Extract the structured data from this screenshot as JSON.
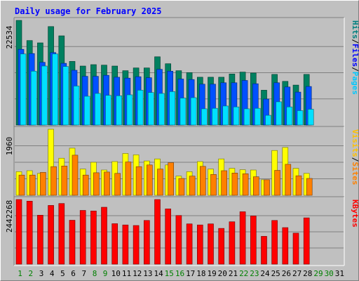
{
  "chart_data": {
    "type": "bar",
    "title": "Daily usage for February 2025",
    "x": [
      "1",
      "2",
      "3",
      "4",
      "5",
      "6",
      "7",
      "8",
      "9",
      "10",
      "11",
      "12",
      "13",
      "14",
      "15",
      "16",
      "17",
      "18",
      "19",
      "20",
      "21",
      "22",
      "23",
      "24",
      "25",
      "26",
      "27",
      "28",
      "29",
      "30",
      "31"
    ],
    "weekend_days": [
      1,
      2,
      8,
      9,
      15,
      16,
      22,
      23,
      29,
      30
    ],
    "panels": [
      {
        "name": "pages-files-hits",
        "max_label": "22534",
        "ymax": 22534,
        "legend": [
          {
            "text": "Pages",
            "color": "#00c8ff"
          },
          {
            "text": "/",
            "color": "#000000"
          },
          {
            "text": "Files",
            "color": "#0000ff"
          },
          {
            "text": "/",
            "color": "#000000"
          },
          {
            "text": "Hits",
            "color": "#008080"
          }
        ],
        "series": [
          {
            "name": "Hits",
            "color": "#008060",
            "values": [
              22534,
              18200,
              17700,
              21200,
              19200,
              13700,
              12700,
              13000,
              12900,
              12700,
              11700,
              12300,
              12300,
              14700,
              13200,
              11700,
              11300,
              10300,
              10300,
              10300,
              11000,
              11400,
              11200,
              7500,
              10900,
              9400,
              8600,
              10900,
              0,
              0,
              0
            ]
          },
          {
            "name": "Files",
            "color": "#0050ff",
            "values": [
              16300,
              15400,
              13500,
              15600,
              13300,
              11800,
              10500,
              10500,
              10700,
              10300,
              10100,
              10400,
              10200,
              12000,
              11600,
              9900,
              9800,
              8800,
              8800,
              9100,
              9100,
              9600,
              8900,
              5600,
              9100,
              8200,
              7100,
              8300,
              0,
              0,
              0
            ]
          },
          {
            "name": "Pages",
            "color": "#00e0ff",
            "values": [
              15300,
              11600,
              12700,
              15300,
              12600,
              8400,
              6200,
              6800,
              6400,
              6300,
              6500,
              7500,
              7000,
              6800,
              7200,
              5800,
              5900,
              3500,
              3600,
              4100,
              3900,
              3500,
              3600,
              2100,
              5000,
              3900,
              3100,
              3400,
              0,
              0,
              0
            ]
          }
        ]
      },
      {
        "name": "visits-sites",
        "max_label": "1960",
        "ymax": 1960,
        "legend": [
          {
            "text": "Sites",
            "color": "#ff8000"
          },
          {
            "text": "/",
            "color": "#000000"
          },
          {
            "text": "Visits",
            "color": "#ffc000"
          }
        ],
        "series": [
          {
            "name": "Visits",
            "color": "#ffff00",
            "values": [
              700,
              730,
              650,
              1960,
              1100,
              1400,
              780,
              980,
              750,
              1000,
              1240,
              1200,
              1020,
              1080,
              900,
              570,
              700,
              1000,
              780,
              1080,
              800,
              760,
              750,
              460,
              1330,
              1420,
              800,
              650,
              0,
              0,
              0
            ]
          },
          {
            "name": "Sites",
            "color": "#ff8000",
            "values": [
              600,
              600,
              680,
              850,
              870,
              1190,
              600,
              670,
              690,
              650,
              990,
              850,
              900,
              780,
              970,
              500,
              570,
              860,
              620,
              730,
              660,
              640,
              550,
              460,
              740,
              920,
              580,
              500,
              0,
              0,
              0
            ]
          }
        ]
      },
      {
        "name": "kbytes",
        "max_label": "2442268",
        "ymax": 2442268,
        "legend": [
          {
            "text": "KBytes",
            "color": "#ff0000"
          }
        ],
        "series": [
          {
            "name": "KBytes",
            "color": "#ff0000",
            "values": [
              2442268,
              2380000,
              1850000,
              2220000,
              2290000,
              1660000,
              2030000,
              2010000,
              2150000,
              1530000,
              1480000,
              1460000,
              1650000,
              2442268,
              2090000,
              1840000,
              1520000,
              1480000,
              1520000,
              1350000,
              1600000,
              1980000,
              1820000,
              1050000,
              1650000,
              1380000,
              1170000,
              1750000,
              0,
              0,
              0
            ]
          }
        ]
      }
    ]
  }
}
